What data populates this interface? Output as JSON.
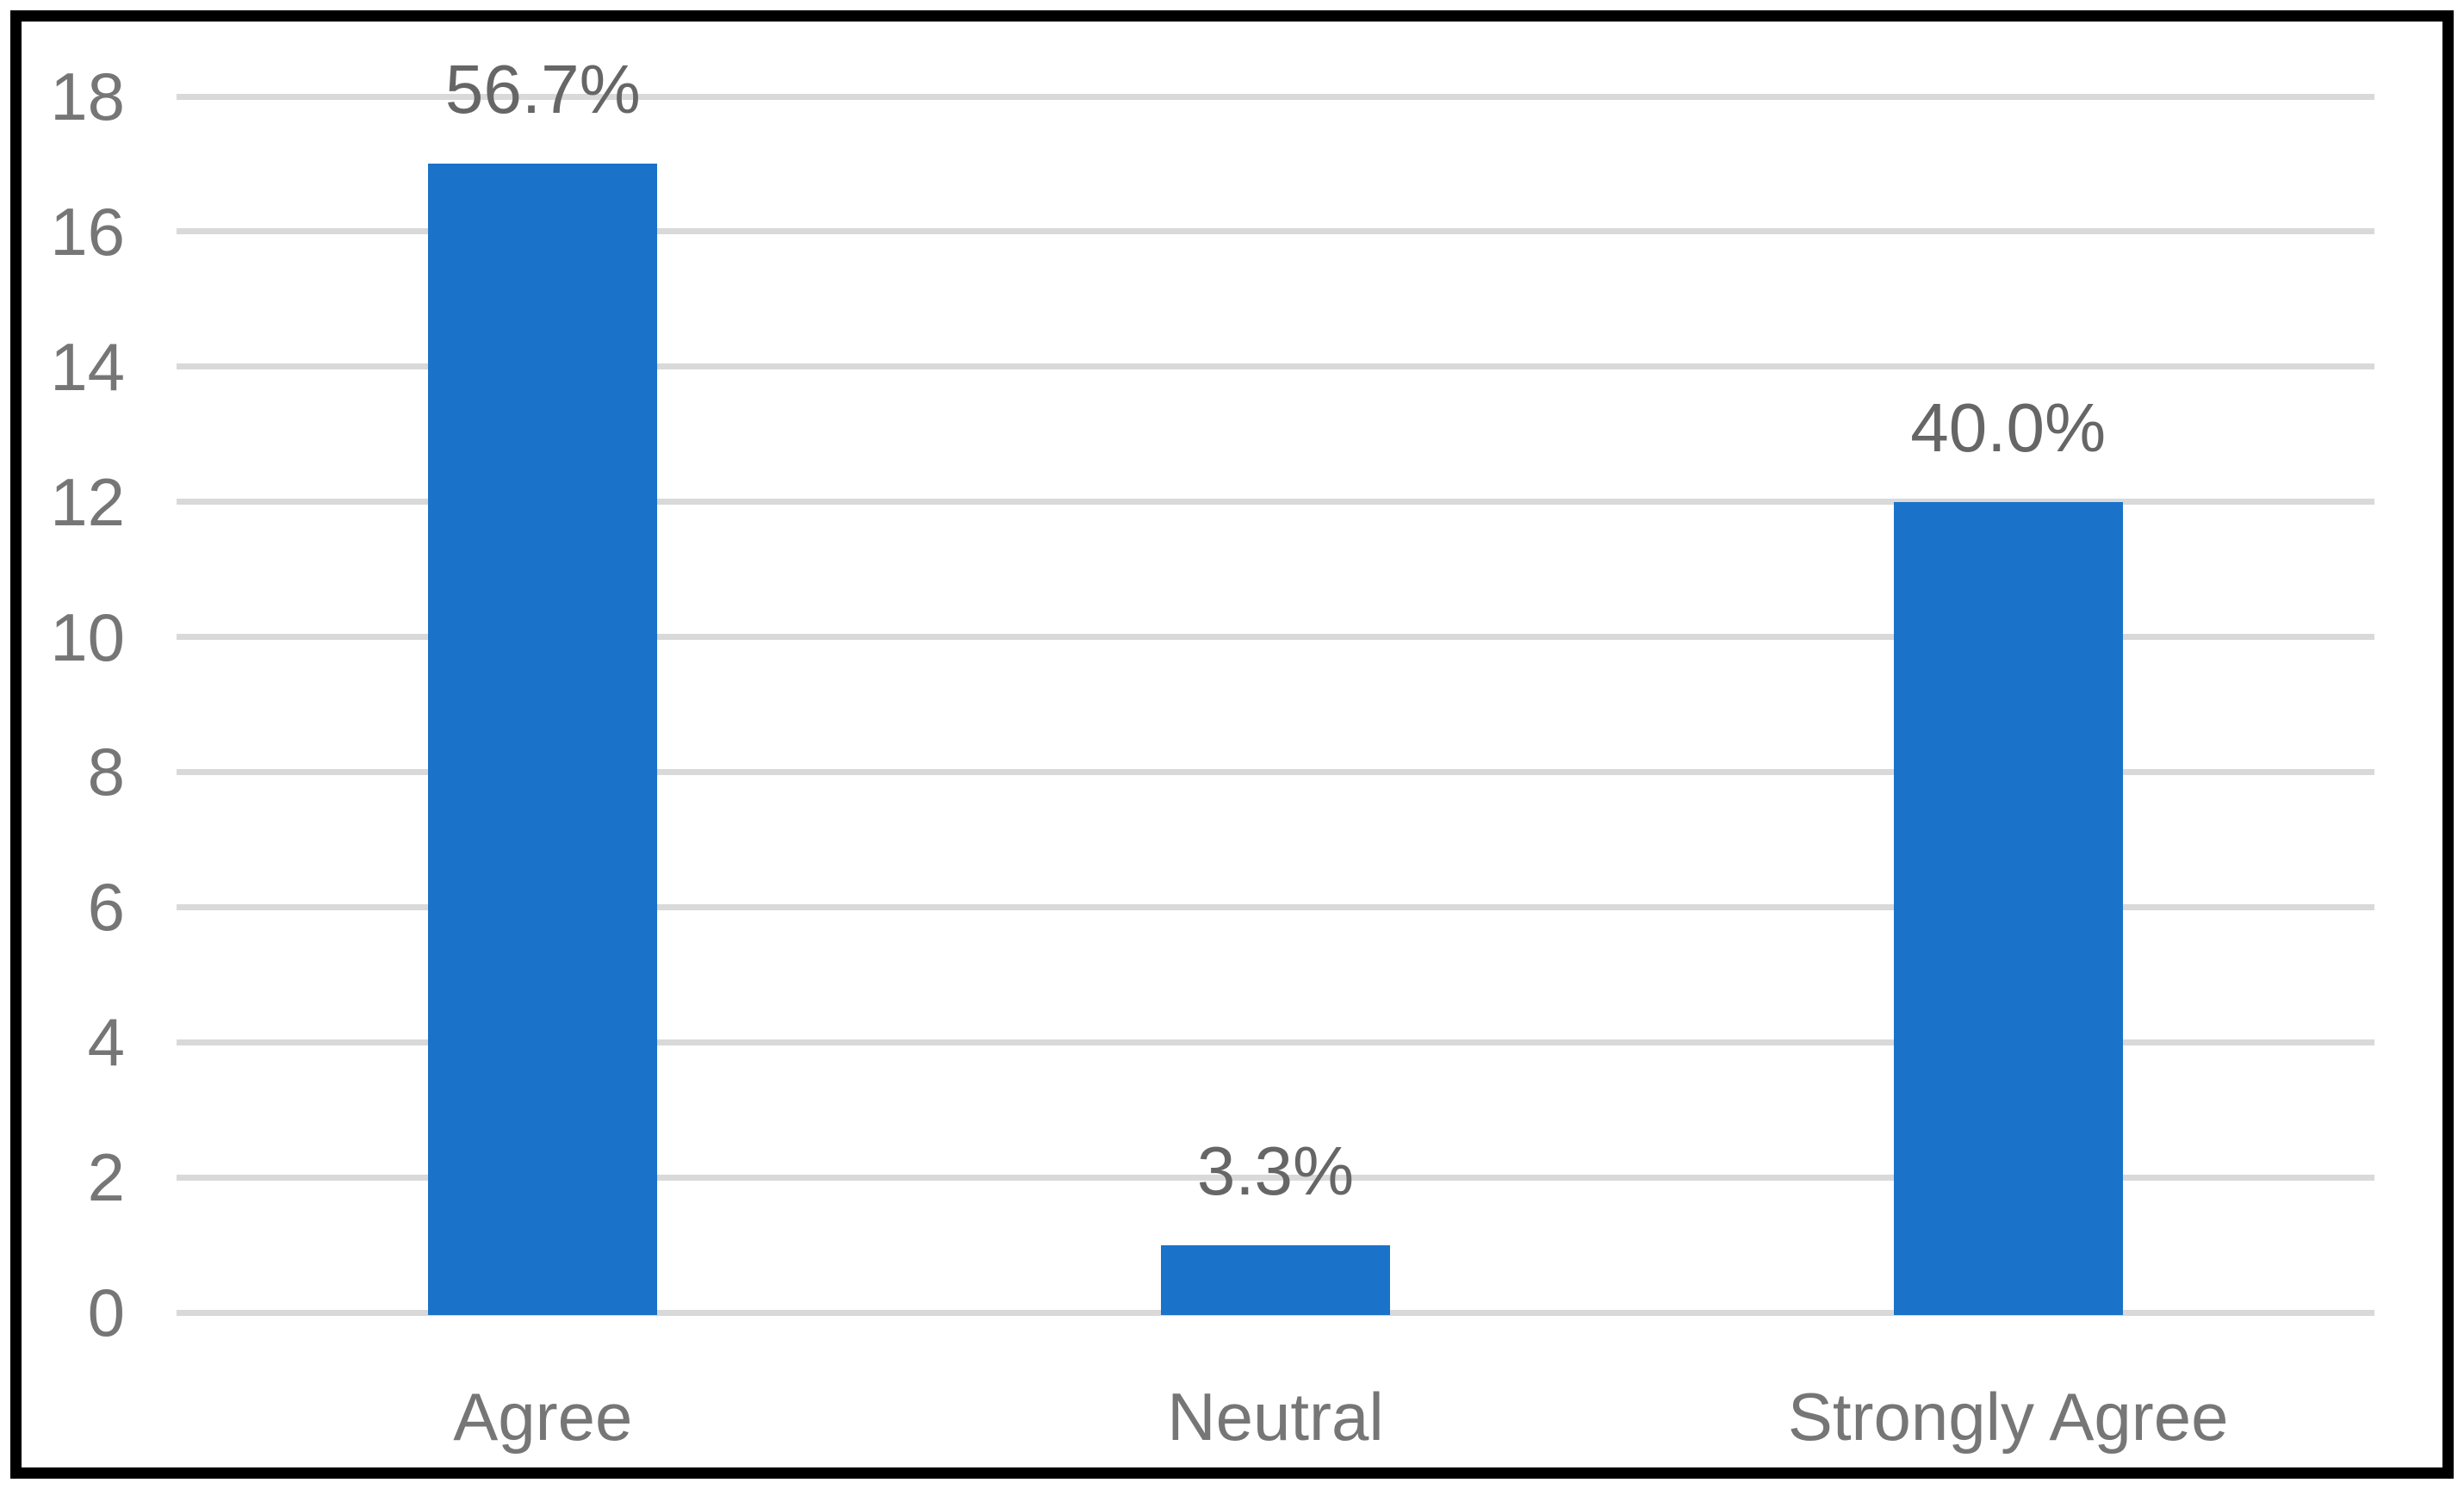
{
  "chart_data": {
    "type": "bar",
    "title": "",
    "xlabel": "",
    "ylabel": "",
    "categories": [
      "Agree",
      "Neutral",
      "Strongly Agree"
    ],
    "values": [
      17,
      1,
      12
    ],
    "data_labels": [
      "56.7%",
      "3.3%",
      "40.0%"
    ],
    "yticks": [
      0,
      2,
      4,
      6,
      8,
      10,
      12,
      14,
      16,
      18
    ],
    "ylim": [
      0,
      18
    ],
    "grid": "horizontal",
    "legend": "none",
    "colors": {
      "bar": "#1A73C8",
      "gridline": "#D9D9D9",
      "axis_label": "#767676",
      "data_label": "#666666",
      "frame_border": "#000000",
      "background": "#FFFFFF"
    }
  }
}
